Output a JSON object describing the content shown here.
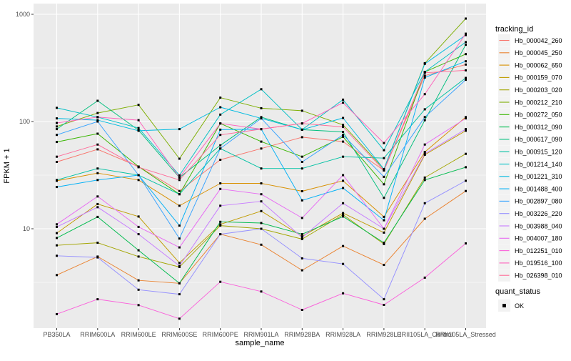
{
  "figure": {
    "panel_bg": "#EBEBEB",
    "grid_color": "#FFFFFF",
    "tick_color": "#333333",
    "tick_label_color": "#4D4D4D",
    "axis_title_color": "#000000",
    "point_color": "#000000",
    "legend_key_bg": "#F2F2F2"
  },
  "chart_data": {
    "type": "line",
    "xlabel": "sample_name",
    "ylabel": "FPKM + 1",
    "y_scale": "log10",
    "y_major_ticks": [
      10,
      100,
      1000
    ],
    "y_minor_ticks": [
      3.162,
      31.62,
      316.2
    ],
    "grid": true,
    "legend_position": "right",
    "categories": [
      "PB350LA",
      "RRIM600LA",
      "RRIM600LE",
      "RRIM600SE",
      "RRIM600PE",
      "RRIM901LA",
      "RRIM928BA",
      "RRIM928LA",
      "RRIM928LE",
      "RRII105LA_Control",
      "RRII105LA_Stressed"
    ],
    "series": [
      {
        "name": "Hb_000042_260",
        "color": "#F8766D",
        "values": [
          42,
          55,
          38,
          22.5,
          44,
          56,
          71.5,
          65,
          35,
          268,
          340
        ]
      },
      {
        "name": "Hb_000045_250",
        "color": "#EA8331",
        "values": [
          3.7,
          5.5,
          3.3,
          3.1,
          8.9,
          7.1,
          4.1,
          6.9,
          4.6,
          12.4,
          22.5
        ]
      },
      {
        "name": "Hb_000062_650",
        "color": "#D89000",
        "values": [
          28,
          33,
          28.5,
          16.4,
          26.5,
          26.5,
          22.4,
          28,
          12.9,
          52,
          110
        ]
      },
      {
        "name": "Hb_000159_070",
        "color": "#C09B00",
        "values": [
          9.1,
          17,
          13,
          4.8,
          11,
          14.6,
          8.5,
          14,
          9.2,
          49,
          82
        ]
      },
      {
        "name": "Hb_000203_020",
        "color": "#A3A500",
        "values": [
          7,
          7.4,
          5.5,
          4.4,
          10.7,
          10,
          8,
          13.5,
          7.2,
          30,
          50
        ]
      },
      {
        "name": "Hb_000212_210",
        "color": "#7CAE00",
        "values": [
          90,
          120,
          143,
          45,
          167,
          133,
          126,
          93,
          36,
          350,
          912
        ]
      },
      {
        "name": "Hb_000272_050",
        "color": "#39B600",
        "values": [
          64.5,
          77,
          38,
          21,
          96,
          65,
          47,
          72,
          26,
          290,
          425
        ]
      },
      {
        "name": "Hb_000312_090",
        "color": "#00BB4E",
        "values": [
          8.2,
          12.9,
          6.3,
          3.1,
          11.6,
          11.3,
          8.9,
          13,
          7.4,
          28.5,
          37.5
        ]
      },
      {
        "name": "Hb_000617_090",
        "color": "#00BF7D",
        "values": [
          85,
          156,
          83,
          30,
          60,
          110,
          84,
          80,
          19.4,
          103,
          520
        ]
      },
      {
        "name": "Hb_000915_120",
        "color": "#00C1A3",
        "values": [
          28.5,
          36.5,
          31.6,
          21,
          56,
          36.5,
          36.5,
          47,
          45.6,
          130,
          255
        ]
      },
      {
        "name": "Hb_001214_140",
        "color": "#00BFC4",
        "values": [
          134,
          110,
          87,
          31.5,
          116,
          200,
          84,
          160,
          54,
          290,
          550
        ]
      },
      {
        "name": "Hb_001221_310",
        "color": "#00BAE0",
        "values": [
          107,
          103,
          82,
          85,
          136,
          107,
          84,
          108,
          36,
          345,
          640
        ]
      },
      {
        "name": "Hb_001488_400",
        "color": "#00B0F6",
        "values": [
          24.5,
          28.5,
          31.6,
          10.7,
          84,
          85,
          18.4,
          24,
          12,
          257,
          365
        ]
      },
      {
        "name": "Hb_002897_080",
        "color": "#35A2FF",
        "values": [
          75,
          100,
          31.6,
          8.1,
          56,
          107,
          42,
          75,
          30.5,
          110,
          245
        ]
      },
      {
        "name": "Hb_003226_220",
        "color": "#9590FF",
        "values": [
          5.6,
          5.4,
          2.7,
          2.45,
          8.9,
          10,
          5.3,
          4.7,
          2.2,
          17.3,
          28
        ]
      },
      {
        "name": "Hb_003988_040",
        "color": "#C77CFF",
        "values": [
          10.4,
          15.9,
          8.9,
          4.5,
          16.4,
          18,
          8.3,
          17.3,
          10,
          50,
          85
        ]
      },
      {
        "name": "Hb_004007_180",
        "color": "#E76BF3",
        "values": [
          11,
          20,
          10.4,
          6.7,
          23.5,
          21,
          12.6,
          31.6,
          10,
          61,
          107
        ]
      },
      {
        "name": "Hb_012251_010",
        "color": "#FA62DB",
        "values": [
          1.6,
          2.2,
          1.94,
          1.45,
          3.2,
          2.6,
          1.75,
          2.5,
          1.95,
          3.5,
          7.3
        ]
      },
      {
        "name": "Hb_019516_100",
        "color": "#FF62BC",
        "values": [
          97,
          110,
          103,
          30,
          96,
          85,
          96,
          150,
          63,
          180,
          660
        ]
      },
      {
        "name": "Hb_026398_010",
        "color": "#FF6A98",
        "values": [
          47,
          61,
          37.5,
          28.5,
          75,
          85,
          96,
          89,
          35,
          285,
          300
        ]
      }
    ],
    "legend": {
      "color_title": "tracking_id",
      "shape_title": "quant_status",
      "shape_items": [
        {
          "label": "OK"
        }
      ]
    }
  }
}
